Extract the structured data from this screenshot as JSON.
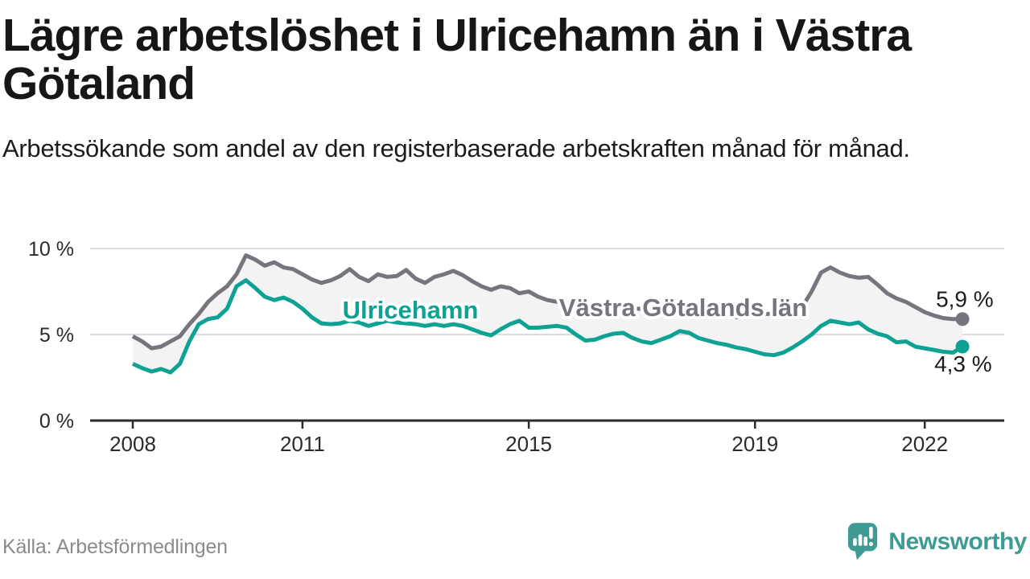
{
  "header": {
    "title": "Lägre arbetslöshet i Ulricehamn än i Västra Götaland",
    "subtitle": "Arbetssökande som andel av den registerbaserade arbetskraften månad för månad."
  },
  "chart_data": {
    "type": "line",
    "title": "Lägre arbetslöshet i Ulricehamn än i Västra Götaland",
    "xlabel": "",
    "ylabel": "Arbetssökande som andel av den registerbaserade arbetskraften",
    "x_start": 2008.0,
    "x_step_years": 0.166667,
    "x_end": 2022.667,
    "ylim": [
      0,
      10.7
    ],
    "xlim": [
      2007.25,
      2023.4
    ],
    "grid": true,
    "grid_color": "#dcdcdc",
    "axis_color": "#2b2b2b",
    "band_fill": "#f4f3f4",
    "end_label_color": "#1d1d1d",
    "y_ticks": [
      {
        "value": 0,
        "label": "0 %"
      },
      {
        "value": 5,
        "label": "5 %"
      },
      {
        "value": 10,
        "label": "10 %"
      }
    ],
    "x_ticks": [
      {
        "value": 2008,
        "label": "2008"
      },
      {
        "value": 2011,
        "label": "2011"
      },
      {
        "value": 2015,
        "label": "2015"
      },
      {
        "value": 2019,
        "label": "2019"
      },
      {
        "value": 2022,
        "label": "2022"
      }
    ],
    "series": [
      {
        "name": "Västra Götalands län",
        "color": "#76757D",
        "end_label": "5,9 %",
        "end_value": 5.9,
        "values": [
          4.9,
          4.6,
          4.2,
          4.3,
          4.6,
          4.9,
          5.6,
          6.2,
          6.9,
          7.4,
          7.8,
          8.5,
          9.6,
          9.35,
          9.0,
          9.2,
          8.9,
          8.8,
          8.5,
          8.2,
          8.0,
          8.15,
          8.4,
          8.8,
          8.35,
          8.1,
          8.5,
          8.35,
          8.4,
          8.75,
          8.25,
          8.0,
          8.35,
          8.5,
          8.7,
          8.45,
          8.1,
          7.8,
          7.6,
          7.8,
          7.7,
          7.4,
          7.5,
          7.2,
          7.0,
          6.9,
          6.8,
          6.7,
          6.7,
          6.6,
          6.5,
          6.5,
          6.6,
          6.5,
          6.5,
          6.4,
          6.3,
          6.4,
          6.4,
          6.3,
          6.3,
          6.2,
          6.1,
          6.1,
          6.0,
          6.1,
          6.1,
          6.2,
          6.2,
          6.3,
          6.4,
          6.6,
          7.5,
          8.6,
          8.9,
          8.6,
          8.4,
          8.3,
          8.35,
          7.9,
          7.4,
          7.1,
          6.9,
          6.6,
          6.3,
          6.1,
          5.95,
          5.9,
          5.9
        ]
      },
      {
        "name": "Ulricehamn",
        "color": "#0FA294",
        "end_label": "4,3 %",
        "end_value": 4.3,
        "values": [
          3.3,
          3.05,
          2.85,
          3.0,
          2.8,
          3.3,
          4.6,
          5.6,
          5.9,
          6.0,
          6.5,
          7.8,
          8.15,
          7.7,
          7.2,
          7.0,
          7.15,
          6.9,
          6.5,
          6.0,
          5.65,
          5.6,
          5.65,
          5.8,
          5.7,
          5.5,
          5.65,
          5.8,
          5.7,
          5.65,
          5.6,
          5.5,
          5.6,
          5.5,
          5.6,
          5.5,
          5.3,
          5.1,
          4.95,
          5.3,
          5.6,
          5.8,
          5.4,
          5.4,
          5.45,
          5.5,
          5.4,
          5.0,
          4.65,
          4.7,
          4.9,
          5.05,
          5.1,
          4.8,
          4.6,
          4.5,
          4.7,
          4.9,
          5.2,
          5.1,
          4.8,
          4.65,
          4.5,
          4.4,
          4.25,
          4.15,
          4.0,
          3.85,
          3.8,
          3.95,
          4.25,
          4.6,
          5.0,
          5.5,
          5.8,
          5.7,
          5.6,
          5.7,
          5.3,
          5.05,
          4.9,
          4.55,
          4.6,
          4.3,
          4.2,
          4.1,
          4.0,
          3.95,
          4.3
        ]
      }
    ],
    "legend_position": "inline-labels"
  },
  "footer": {
    "source": "Källa: Arbetsförmedlingen",
    "brand": "Newsworthy",
    "brand_color": "#3E9B94"
  }
}
